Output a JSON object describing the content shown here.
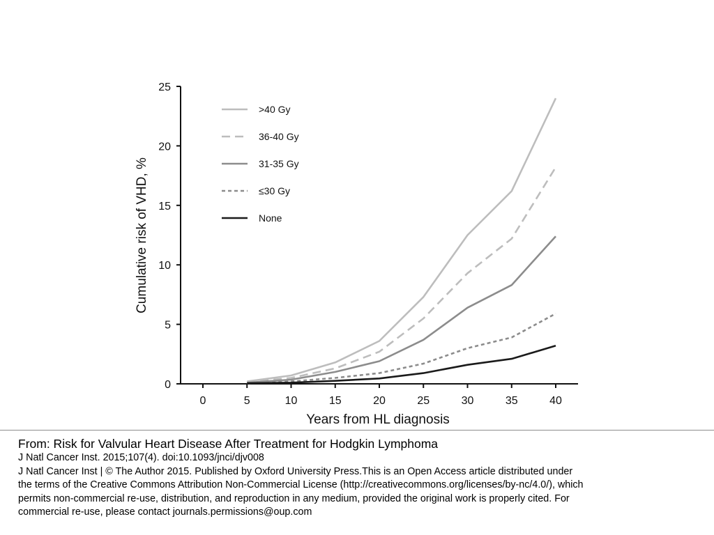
{
  "chart_data": {
    "type": "line",
    "title": "",
    "xlabel": "Years from HL diagnosis",
    "ylabel": "Cumulative risk of VHD, %",
    "xlim": [
      0,
      40
    ],
    "ylim": [
      0,
      25
    ],
    "x_ticks": [
      0,
      5,
      10,
      15,
      20,
      25,
      30,
      35,
      40
    ],
    "y_ticks": [
      0,
      5,
      10,
      15,
      20,
      25
    ],
    "grid": false,
    "legend_position": "top-left",
    "x": [
      5,
      10,
      15,
      20,
      25,
      30,
      35,
      40
    ],
    "series": [
      {
        "name": ">40 Gy",
        "color": "#bdbdbd",
        "dash": "solid",
        "values": [
          0.2,
          0.7,
          1.8,
          3.6,
          7.3,
          12.5,
          16.2,
          24.0
        ]
      },
      {
        "name": "36-40 Gy",
        "color": "#bdbdbd",
        "dash": "long",
        "values": [
          0.15,
          0.5,
          1.3,
          2.7,
          5.5,
          9.3,
          12.2,
          18.2
        ]
      },
      {
        "name": "31-35 Gy",
        "color": "#8c8c8c",
        "dash": "solid",
        "values": [
          0.1,
          0.35,
          1.0,
          1.9,
          3.7,
          6.4,
          8.3,
          12.4
        ]
      },
      {
        "name": "≤30 Gy",
        "color": "#8c8c8c",
        "dash": "short",
        "values": [
          0.05,
          0.2,
          0.5,
          0.9,
          1.7,
          3.0,
          3.9,
          5.9
        ]
      },
      {
        "name": "None",
        "color": "#1a1a1a",
        "dash": "solid",
        "values": [
          0.05,
          0.1,
          0.25,
          0.45,
          0.9,
          1.6,
          2.1,
          3.2
        ]
      }
    ]
  },
  "caption": {
    "title": "From: Risk for Valvular Heart Disease After Treatment for Hodgkin Lymphoma",
    "citation": "J Natl Cancer Inst. 2015;107(4). doi:10.1093/jnci/djv008",
    "license_lines": [
      "J Natl Cancer Inst | © The Author 2015. Published by Oxford University Press.This is an Open Access article distributed under",
      "the terms of the Creative Commons Attribution Non-Commercial License (http://creativecommons.org/licenses/by-nc/4.0/), which",
      "permits non-commercial re-use, distribution, and reproduction in any medium, provided the original work is properly cited. For",
      "commercial re-use, please contact journals.permissions@oup.com"
    ]
  }
}
